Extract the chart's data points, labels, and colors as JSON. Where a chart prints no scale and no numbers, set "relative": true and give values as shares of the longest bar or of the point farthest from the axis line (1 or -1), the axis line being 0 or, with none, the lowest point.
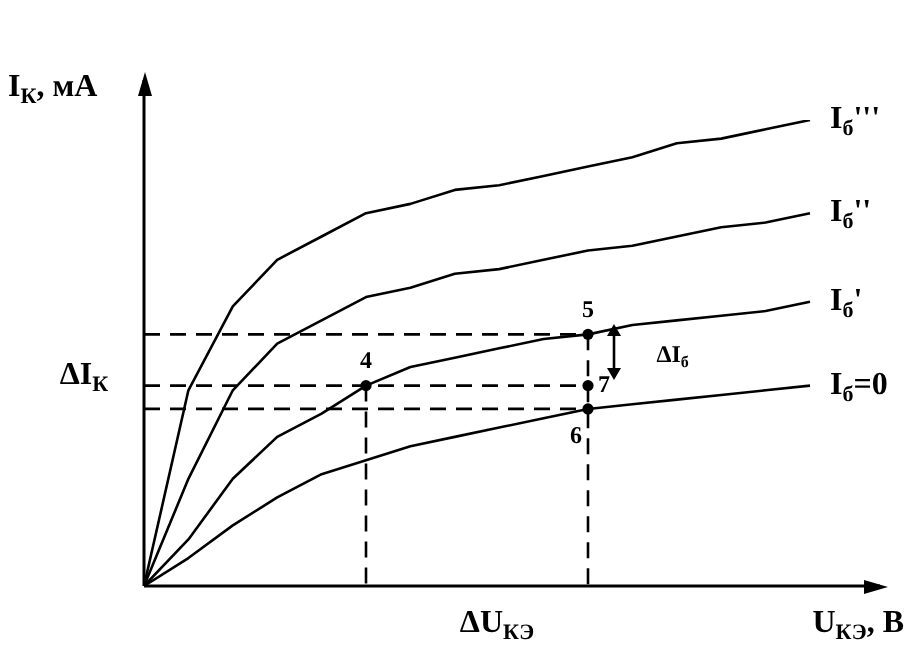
{
  "chart_data": {
    "type": "line",
    "relative": true,
    "marker": "none",
    "line_style": "solid",
    "xlabel": "U$_{КЭ}$, В",
    "ylabel": "I$_{К}$, мА",
    "categories": [
      null,
      null,
      null,
      null,
      null,
      null,
      null,
      null,
      null,
      null,
      null,
      null,
      null,
      null,
      null,
      null
    ],
    "series": [
      {
        "name": "I$_{б}$'''",
        "color": "#000000",
        "values": [
          0,
          0.42,
          0.6,
          0.7,
          0.75,
          0.8,
          0.82,
          0.85,
          0.86,
          0.88,
          0.9,
          0.92,
          0.95,
          0.96,
          0.98,
          1
        ]
      },
      {
        "name": "I$_{б}$''",
        "color": "#000000",
        "values": [
          0,
          0.23,
          0.42,
          0.52,
          0.57,
          0.62,
          0.64,
          0.67,
          0.68,
          0.7,
          0.72,
          0.73,
          0.75,
          0.77,
          0.78,
          0.8
        ]
      },
      {
        "name": "I$_{б}$'",
        "color": "#000000",
        "values": [
          0,
          0.1,
          0.23,
          0.32,
          0.37,
          0.43,
          0.47,
          0.49,
          0.51,
          0.53,
          0.54,
          0.56,
          0.57,
          0.58,
          0.59,
          0.61
        ]
      },
      {
        "name": "I$_{б}$=0",
        "color": "#000000",
        "values": [
          0,
          0.06,
          0.13,
          0.19,
          0.24,
          0.27,
          0.3,
          0.32,
          0.34,
          0.36,
          0.38,
          0.39,
          0.4,
          0.41,
          0.42,
          0.43
        ]
      }
    ],
    "annotations": [
      "ΔI$_{К}$",
      "ΔU$_{КЭ}$",
      "ΔI$_{б}$",
      "7",
      {
        "text": "4",
        "y": 0.43
      },
      {
        "text": "5",
        "y": 0.54
      },
      {
        "text": "6",
        "y": 0.38
      }
    ]
  }
}
